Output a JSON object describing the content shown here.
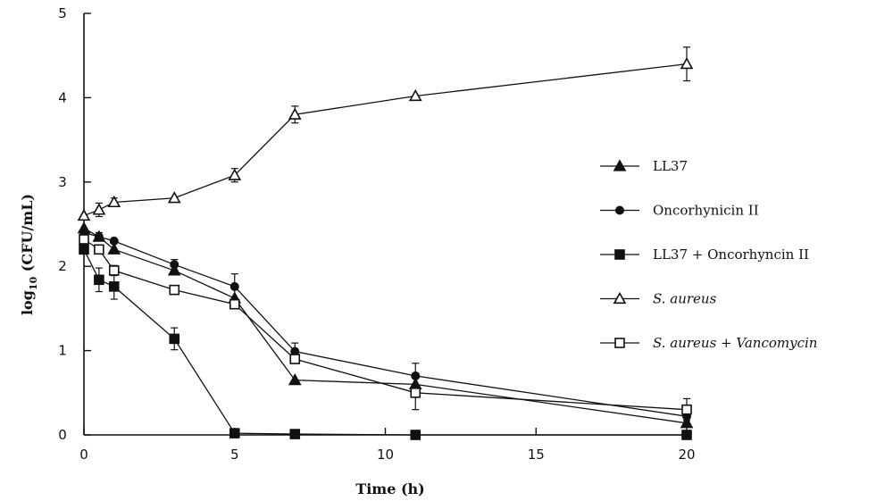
{
  "chart_data": {
    "type": "line",
    "xlabel": "Time (h)",
    "ylabel_main": "log",
    "ylabel_sub": "10",
    "ylabel_rest": " (CFU/mL)",
    "xlim": [
      0,
      20
    ],
    "ylim": [
      0,
      5
    ],
    "xticks": [
      0,
      5,
      10,
      15,
      20
    ],
    "yticks": [
      0,
      1,
      2,
      3,
      4,
      5
    ],
    "grid": false,
    "legend_position": "right",
    "series": [
      {
        "name": "LL37",
        "marker": "filled-triangle",
        "x": [
          0,
          0.5,
          1,
          3,
          5,
          7,
          11,
          20
        ],
        "y": [
          2.45,
          2.35,
          2.2,
          1.95,
          1.62,
          0.65,
          0.6,
          0.14
        ],
        "err": [
          0,
          0,
          0,
          0,
          0,
          0,
          0,
          0
        ]
      },
      {
        "name": "Oncorhynicin II",
        "marker": "filled-circle",
        "x": [
          0,
          0.5,
          1,
          3,
          5,
          7,
          11,
          20
        ],
        "y": [
          2.4,
          2.35,
          2.3,
          2.02,
          1.76,
          0.99,
          0.7,
          0.22
        ],
        "err": [
          0,
          0.05,
          0,
          0.06,
          0.15,
          0.1,
          0.15,
          0.05
        ]
      },
      {
        "name": "LL37 + Oncorhyncin II",
        "marker": "filled-square",
        "x": [
          0,
          0.5,
          1,
          3,
          5,
          7,
          11,
          20
        ],
        "y": [
          2.2,
          1.84,
          1.76,
          1.14,
          0.02,
          0.01,
          0,
          0
        ],
        "err": [
          0,
          0.14,
          0.15,
          0.13,
          0,
          0,
          0,
          0
        ]
      },
      {
        "name": "S. aureus",
        "marker": "open-triangle",
        "x": [
          0,
          0.5,
          1,
          3,
          5,
          7,
          11,
          20
        ],
        "y": [
          2.6,
          2.67,
          2.76,
          2.81,
          3.08,
          3.8,
          4.02,
          4.4
        ],
        "err": [
          0,
          0.08,
          0.05,
          0,
          0.08,
          0.1,
          0,
          0.2
        ]
      },
      {
        "name": "S. aureus + Vancomycin",
        "marker": "open-square",
        "x": [
          0,
          0.5,
          1,
          3,
          5,
          7,
          11,
          20
        ],
        "y": [
          2.32,
          2.2,
          1.95,
          1.72,
          1.55,
          0.9,
          0.5,
          0.3
        ],
        "err": [
          0.08,
          0.05,
          0.06,
          0,
          0,
          0.05,
          0.2,
          0.13
        ]
      }
    ],
    "legend": [
      {
        "label": "LL37",
        "italic": false
      },
      {
        "label": "Oncorhynicin II",
        "italic": false
      },
      {
        "label": "LL37 + Oncorhyncin II",
        "italic": false
      },
      {
        "label": "S. aureus",
        "italic": true
      },
      {
        "label": "S. aureus + Vancomycin",
        "italic": true
      }
    ]
  }
}
